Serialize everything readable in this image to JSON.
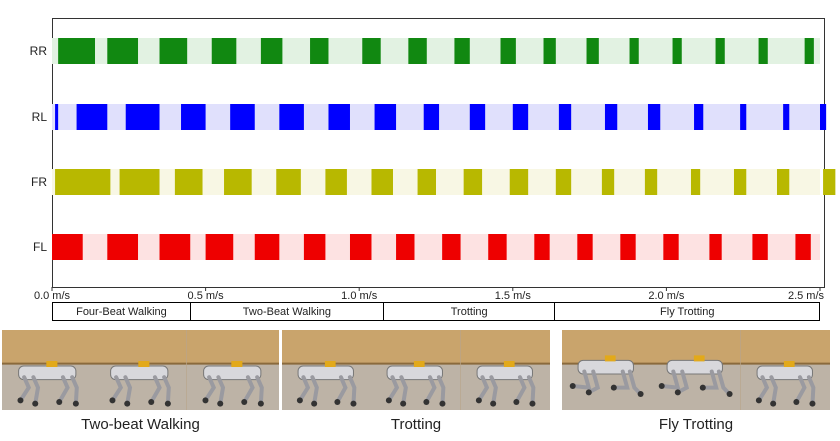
{
  "chart_data": {
    "type": "gait-diagram",
    "x_axis": {
      "range": [
        0.0,
        2.5
      ],
      "ticks": [
        {
          "value": 0.0,
          "label": "0.0 m/s"
        },
        {
          "value": 0.5,
          "label": "0.5 m/s"
        },
        {
          "value": 1.0,
          "label": "1.0 m/s"
        },
        {
          "value": 1.5,
          "label": "1.5 m/s"
        },
        {
          "value": 2.0,
          "label": "2.0 m/s"
        },
        {
          "value": 2.5,
          "label": "2.5 m/s"
        }
      ]
    },
    "legs": [
      {
        "name": "RR",
        "color": "#118811",
        "light": "#e2f2e2",
        "stance": [
          [
            0.02,
            0.14
          ],
          [
            0.18,
            0.28
          ],
          [
            0.35,
            0.44
          ],
          [
            0.52,
            0.6
          ],
          [
            0.68,
            0.75
          ],
          [
            0.84,
            0.9
          ],
          [
            1.01,
            1.07
          ],
          [
            1.16,
            1.22
          ],
          [
            1.31,
            1.36
          ],
          [
            1.46,
            1.51
          ],
          [
            1.6,
            1.64
          ],
          [
            1.74,
            1.78
          ],
          [
            1.88,
            1.91
          ],
          [
            2.02,
            2.05
          ],
          [
            2.16,
            2.19
          ],
          [
            2.3,
            2.33
          ],
          [
            2.45,
            2.48
          ]
        ]
      },
      {
        "name": "RL",
        "color": "#0000ff",
        "light": "#e0e0fc",
        "stance": [
          [
            0.01,
            0.02
          ],
          [
            0.08,
            0.18
          ],
          [
            0.24,
            0.35
          ],
          [
            0.42,
            0.5
          ],
          [
            0.58,
            0.66
          ],
          [
            0.74,
            0.82
          ],
          [
            0.9,
            0.97
          ],
          [
            1.05,
            1.12
          ],
          [
            1.21,
            1.26
          ],
          [
            1.36,
            1.41
          ],
          [
            1.5,
            1.55
          ],
          [
            1.65,
            1.69
          ],
          [
            1.8,
            1.84
          ],
          [
            1.94,
            1.98
          ],
          [
            2.09,
            2.12
          ],
          [
            2.24,
            2.26
          ],
          [
            2.38,
            2.4
          ],
          [
            2.5,
            2.52
          ]
        ]
      },
      {
        "name": "FR",
        "color": "#b8b800",
        "light": "#f8f7e4",
        "stance": [
          [
            0.01,
            0.19
          ],
          [
            0.22,
            0.35
          ],
          [
            0.4,
            0.49
          ],
          [
            0.56,
            0.65
          ],
          [
            0.73,
            0.81
          ],
          [
            0.89,
            0.96
          ],
          [
            1.04,
            1.11
          ],
          [
            1.19,
            1.25
          ],
          [
            1.34,
            1.4
          ],
          [
            1.49,
            1.55
          ],
          [
            1.64,
            1.69
          ],
          [
            1.79,
            1.83
          ],
          [
            1.93,
            1.97
          ],
          [
            2.08,
            2.11
          ],
          [
            2.22,
            2.26
          ],
          [
            2.36,
            2.4
          ],
          [
            2.51,
            2.55
          ]
        ]
      },
      {
        "name": "FL",
        "color": "#ee0000",
        "light": "#fde2e2",
        "stance": [
          [
            0.0,
            0.1
          ],
          [
            0.18,
            0.28
          ],
          [
            0.35,
            0.45
          ],
          [
            0.5,
            0.59
          ],
          [
            0.66,
            0.74
          ],
          [
            0.82,
            0.89
          ],
          [
            0.97,
            1.04
          ],
          [
            1.12,
            1.18
          ],
          [
            1.27,
            1.33
          ],
          [
            1.42,
            1.48
          ],
          [
            1.57,
            1.62
          ],
          [
            1.71,
            1.76
          ],
          [
            1.85,
            1.9
          ],
          [
            1.99,
            2.04
          ],
          [
            2.14,
            2.18
          ],
          [
            2.28,
            2.33
          ],
          [
            2.42,
            2.47
          ]
        ]
      }
    ],
    "phases": [
      {
        "label": "Four-Beat Walking",
        "start": 0.0,
        "end": 0.45
      },
      {
        "label": "Two-Beat Walking",
        "start": 0.45,
        "end": 1.08
      },
      {
        "label": "Trotting",
        "start": 1.08,
        "end": 1.64
      },
      {
        "label": "Fly Trotting",
        "start": 1.64,
        "end": 2.5
      }
    ]
  },
  "photos": [
    {
      "caption": "Two-beat Walking",
      "frames": 3
    },
    {
      "caption": "Trotting",
      "frames": 3
    },
    {
      "caption": "Fly Trotting",
      "frames": 3
    }
  ]
}
